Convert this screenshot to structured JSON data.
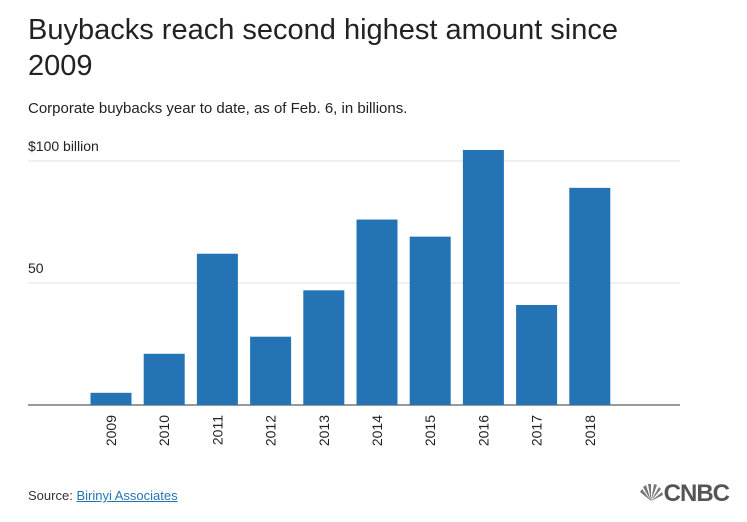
{
  "chart_data": {
    "type": "bar",
    "title": "Buybacks reach second highest amount since 2009",
    "subtitle": "Corporate buybacks year to date, as of Feb. 6, in billions.",
    "categories": [
      "2009",
      "2010",
      "2011",
      "2012",
      "2013",
      "2014",
      "2015",
      "2016",
      "2017",
      "2018"
    ],
    "values": [
      5,
      21,
      62,
      28,
      47,
      76,
      69,
      104.5,
      41,
      89
    ],
    "color": "#2474b5",
    "ylim": [
      0,
      110
    ],
    "yticks": [
      50,
      {
        "value": 100,
        "label": "$100 billion"
      }
    ],
    "grid": true,
    "source_label": "Source:",
    "source": "Birinyi Associates",
    "logo": "CNBC"
  }
}
